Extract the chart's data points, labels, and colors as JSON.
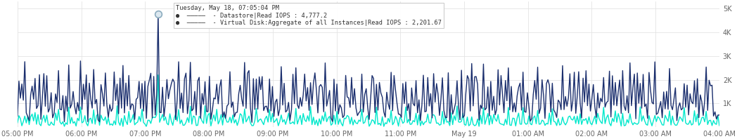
{
  "x_labels": [
    "05:00 PM",
    "06:00 PM",
    "07:00 PM",
    "08:00 PM",
    "09:00 PM",
    "10:00 PM",
    "11:00 PM",
    "May 19",
    "01:00 AM",
    "02:00 AM",
    "03:00 AM",
    "04:00 AM"
  ],
  "y_ticks": [
    0,
    1000,
    2000,
    3000,
    4000,
    5000
  ],
  "y_tick_labels": [
    "",
    "1K",
    "2K",
    "3K",
    "4K",
    "5K"
  ],
  "ylim": [
    0,
    5300
  ],
  "color_dark": "#1b2f6e",
  "color_cyan": "#00e8cc",
  "bg_color": "#ffffff",
  "grid_color": "#e4e4e4",
  "tooltip_time": "Tuesday, May 18, 07:05:04 PM",
  "tooltip_ds_label": "Datastore|Read IOPS : ",
  "tooltip_ds_val": "4,777.2",
  "tooltip_vd_label": "Virtual Disk:Aggregate of all Instances|Read IOPS : ",
  "tooltip_vd_val": "2,201.67",
  "n_points": 480,
  "spike_index": 96,
  "spike_value_dark": 4777,
  "spike_value_cyan": 2202,
  "dark_base_min": 400,
  "dark_base_max": 2600,
  "cyan_ratio_min": 0.12,
  "cyan_ratio_max": 0.45
}
